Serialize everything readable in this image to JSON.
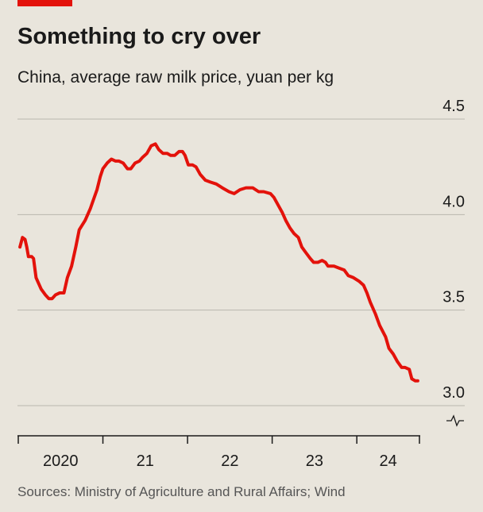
{
  "chart_data": {
    "type": "line",
    "title": "Something to cry over",
    "subtitle": "China, average raw milk price, yuan per kg",
    "source": "Sources: Ministry of Agriculture and Rural Affairs; Wind",
    "x": [
      2020.02,
      2020.05,
      2020.08,
      2020.1,
      2020.12,
      2020.16,
      2020.18,
      2020.21,
      2020.23,
      2020.27,
      2020.32,
      2020.36,
      2020.4,
      2020.44,
      2020.49,
      2020.54,
      2020.58,
      2020.63,
      2020.68,
      2020.72,
      2020.79,
      2020.85,
      2020.89,
      2020.93,
      2020.97,
      2021.0,
      2021.05,
      2021.1,
      2021.15,
      2021.19,
      2021.24,
      2021.29,
      2021.33,
      2021.38,
      2021.43,
      2021.47,
      2021.52,
      2021.57,
      2021.62,
      2021.66,
      2021.71,
      2021.76,
      2021.8,
      2021.85,
      2021.9,
      2021.94,
      2021.97,
      2022.01,
      2022.06,
      2022.1,
      2022.15,
      2022.21,
      2022.27,
      2022.34,
      2022.41,
      2022.49,
      2022.55,
      2022.62,
      2022.69,
      2022.77,
      2022.84,
      2022.9,
      2022.98,
      2023.02,
      2023.07,
      2023.12,
      2023.16,
      2023.21,
      2023.26,
      2023.31,
      2023.35,
      2023.4,
      2023.45,
      2023.49,
      2023.54,
      2023.59,
      2023.63,
      2023.66,
      2023.73,
      2023.79,
      2023.85,
      2023.9,
      2023.96,
      2024.03,
      2024.08,
      2024.12,
      2024.16,
      2024.22,
      2024.27,
      2024.34,
      2024.38,
      2024.43,
      2024.48,
      2024.53,
      2024.57,
      2024.62,
      2024.65,
      2024.69,
      2024.72
    ],
    "series": [
      {
        "name": "Raw milk price",
        "color": "#e3120b",
        "values": [
          3.83,
          3.88,
          3.87,
          3.83,
          3.78,
          3.78,
          3.77,
          3.67,
          3.65,
          3.61,
          3.58,
          3.56,
          3.56,
          3.58,
          3.59,
          3.59,
          3.67,
          3.73,
          3.83,
          3.92,
          3.97,
          4.03,
          4.08,
          4.13,
          4.2,
          4.24,
          4.27,
          4.29,
          4.28,
          4.28,
          4.27,
          4.24,
          4.24,
          4.27,
          4.28,
          4.3,
          4.32,
          4.36,
          4.37,
          4.34,
          4.32,
          4.32,
          4.31,
          4.31,
          4.33,
          4.33,
          4.31,
          4.26,
          4.26,
          4.25,
          4.21,
          4.18,
          4.17,
          4.16,
          4.14,
          4.12,
          4.11,
          4.13,
          4.14,
          4.14,
          4.12,
          4.12,
          4.11,
          4.09,
          4.05,
          4.01,
          3.97,
          3.93,
          3.9,
          3.88,
          3.83,
          3.8,
          3.77,
          3.75,
          3.75,
          3.76,
          3.75,
          3.73,
          3.73,
          3.72,
          3.71,
          3.68,
          3.67,
          3.65,
          3.63,
          3.59,
          3.54,
          3.48,
          3.42,
          3.36,
          3.3,
          3.27,
          3.23,
          3.2,
          3.2,
          3.19,
          3.14,
          3.13,
          3.13
        ]
      }
    ],
    "xlim": [
      2020,
      2024.74
    ],
    "xticks": [
      {
        "value": 2020,
        "label": "2020"
      },
      {
        "value": 2021,
        "label": "21"
      },
      {
        "value": 2022,
        "label": "22"
      },
      {
        "value": 2023,
        "label": "23"
      },
      {
        "value": 2024,
        "label": "24"
      }
    ],
    "ylim": [
      3.0,
      4.5
    ],
    "yticks": [
      {
        "value": 3,
        "label": "3.0"
      },
      3.5,
      {
        "value": 4,
        "label": "4.0"
      },
      4.5
    ],
    "grid": true
  }
}
